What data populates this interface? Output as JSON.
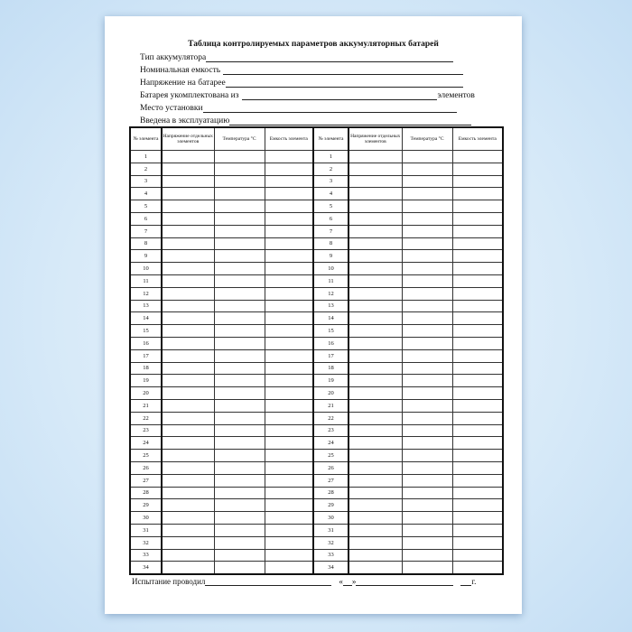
{
  "title": "Таблица контролируемых параметров аккумуляторных батарей",
  "fields": {
    "type": "Тип аккумулятора",
    "capacity": "Номинальная емкость",
    "voltage": "Напряжение на батарее",
    "composed": "Батарея укомплектована из",
    "composed_suffix": "элементов",
    "location": "Место установки",
    "commissioned": "Введена в эксплуатацию"
  },
  "table": {
    "headers": [
      "№ элемента",
      "Напряжение отдельных элементов",
      "Температура °С",
      "Емкость элемента"
    ],
    "rows": [
      "1",
      "2",
      "3",
      "4",
      "5",
      "6",
      "7",
      "8",
      "9",
      "10",
      "11",
      "12",
      "13",
      "14",
      "15",
      "16",
      "17",
      "18",
      "19",
      "20",
      "21",
      "22",
      "23",
      "24",
      "25",
      "26",
      "27",
      "28",
      "29",
      "30",
      "31",
      "32",
      "33",
      "34"
    ]
  },
  "footer": {
    "tested_by": "Испытание проводил",
    "date_open": "«",
    "date_close": "»",
    "year_suffix": "г."
  }
}
